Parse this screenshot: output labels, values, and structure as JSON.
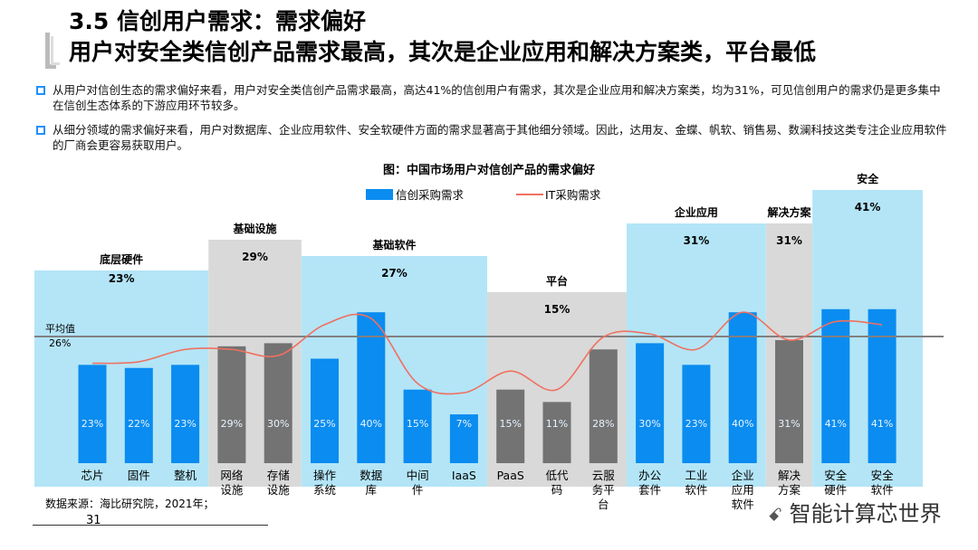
{
  "title": {
    "line1": "3.5 信创用户需求：需求偏好",
    "line2": "用户对安全类信创产品需求最高，其次是企业应用和解决方案类，平台最低"
  },
  "bullets": [
    "从用户对信创生态的需求偏好来看，用户对安全类信创产品需求最高，高达41%的信创用户有需求，其次是企业应用和解决方案类，均为31%，可见信创用户的需求仍是更多集中在信创生态体系的下游应用环节较多。",
    "从细分领域的需求偏好来看，用户对数据库、企业应用软件、安全软硬件方面的需求显著高于其他细分领域。因此，达用友、金蝶、帆软、销售易、数澜科技这类专注企业应用软件的厂商会更容易获取用户。"
  ],
  "footer": {
    "source": "数据来源：海比研究院，2021年；",
    "page": "31",
    "watermark": "智能计算芯世界"
  },
  "colors": {
    "bar_blue": "#0a8cf0",
    "bar_gray": "#737373",
    "group_blue": "#b3e5f7",
    "group_gray": "#d9d9d9",
    "line": "#f07060",
    "avg": "#808080"
  },
  "chart_data": {
    "type": "bar",
    "title": "图：中国市场用户对信创产品的需求偏好",
    "legend": [
      "信创采购需求",
      "IT采购需求"
    ],
    "legend_placement": "top",
    "average": {
      "label": "平均值",
      "value": "26%",
      "num": 26
    },
    "groups": [
      {
        "name": "底层硬件",
        "value": "23%",
        "num": 23,
        "color": "blue",
        "items": [
          0,
          1,
          2
        ]
      },
      {
        "name": "基础设施",
        "value": "29%",
        "num": 29,
        "color": "gray",
        "items": [
          3,
          4
        ]
      },
      {
        "name": "基础软件",
        "value": "27%",
        "num": 27,
        "color": "blue",
        "items": [
          5,
          6,
          7,
          8
        ]
      },
      {
        "name": "平台",
        "value": "15%",
        "num": 15,
        "color": "gray",
        "items": [
          9,
          10,
          11
        ]
      },
      {
        "name": "企业应用",
        "value": "31%",
        "num": 31,
        "color": "blue",
        "items": [
          12,
          13,
          14
        ]
      },
      {
        "name": "解决方案",
        "value": "31%",
        "num": 31,
        "color": "gray",
        "items": [
          15
        ]
      },
      {
        "name": "安全",
        "value": "41%",
        "num": 41,
        "color": "blue",
        "items": [
          16,
          17
        ]
      }
    ],
    "categories": [
      "芯片",
      "固件",
      "整机",
      "网络设施",
      "存储设施",
      "操作系统",
      "数据库",
      "中间件",
      "IaaS",
      "PaaS",
      "低代码",
      "云服务平台",
      "办公套件",
      "工业软件",
      "企业应用软件",
      "解决方案",
      "安全硬件",
      "安全软件"
    ],
    "category_lines": [
      [
        "芯片"
      ],
      [
        "固件"
      ],
      [
        "整机"
      ],
      [
        "网络",
        "设施"
      ],
      [
        "存储",
        "设施"
      ],
      [
        "操作",
        "系统"
      ],
      [
        "数据",
        "库"
      ],
      [
        "中间",
        "件"
      ],
      [
        "IaaS"
      ],
      [
        "PaaS"
      ],
      [
        "低代",
        "码"
      ],
      [
        "云服",
        "务平",
        "台"
      ],
      [
        "办公",
        "套件"
      ],
      [
        "工业",
        "软件"
      ],
      [
        "企业",
        "应用",
        "软件"
      ],
      [
        "解决",
        "方案"
      ],
      [
        "安全",
        "硬件"
      ],
      [
        "安全",
        "软件"
      ]
    ],
    "series": [
      {
        "name": "信创采购需求",
        "values": [
          23,
          22,
          23,
          29,
          30,
          25,
          40,
          15,
          7,
          15,
          11,
          28,
          30,
          23,
          40,
          31,
          41,
          41
        ]
      },
      {
        "name": "IT采购需求",
        "values": [
          23.5,
          24,
          28,
          28,
          26,
          36,
          38,
          17,
          14,
          21,
          15,
          32,
          33,
          28,
          40,
          31,
          37,
          36
        ]
      }
    ]
  }
}
